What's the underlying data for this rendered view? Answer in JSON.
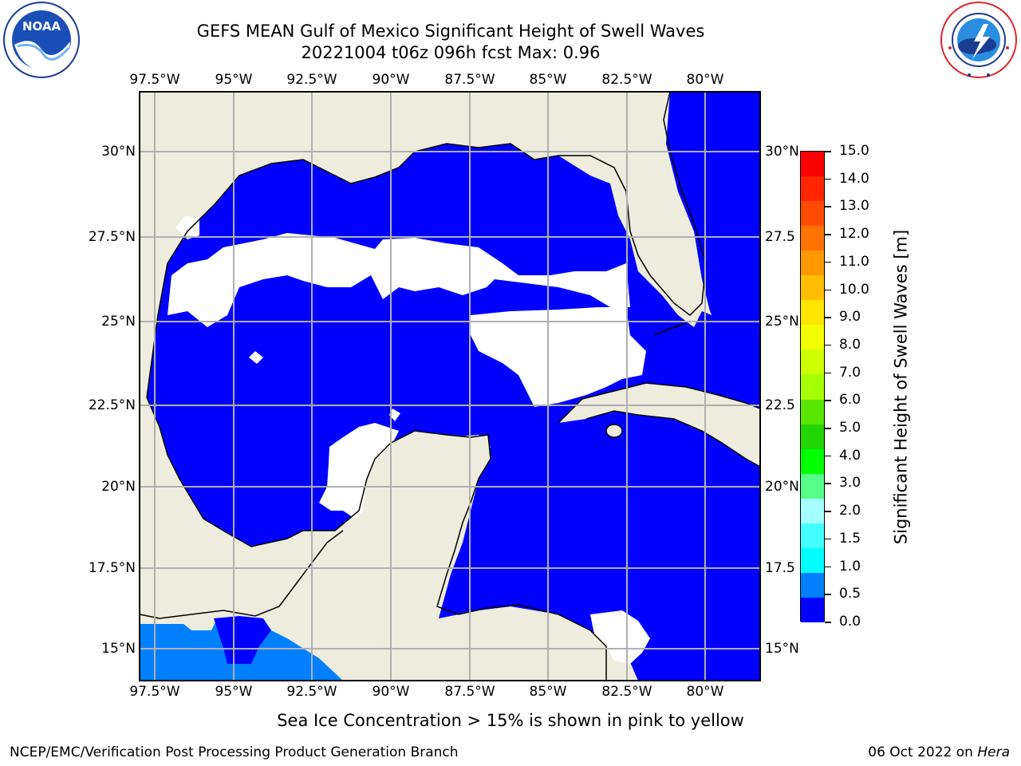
{
  "header": {
    "title_line1": "GEFS MEAN Gulf of Mexico Significant Height of Swell Waves",
    "title_line2": "20221004 t06z 096h fcst   Max: 0.96"
  },
  "logos": {
    "left_text": "NOAA",
    "left_ring_text": "NATIONAL OCEANIC AND ATMOSPHERIC ADMINISTRATION · U.S. DEPARTMENT OF COMMERCE",
    "right_ring_text": "NATIONAL WEATHER SERVICE"
  },
  "map": {
    "lon_labels": [
      "97.5°W",
      "95°W",
      "92.5°W",
      "90°W",
      "87.5°W",
      "85°W",
      "82.5°W",
      "80°W"
    ],
    "lat_labels": [
      "30°N",
      "27.5°N",
      "25°N",
      "22.5°N",
      "20°N",
      "17.5°N",
      "15°N"
    ],
    "lat_labels_right": [
      "30°N",
      "27.5",
      "25°N",
      "22.5",
      "20°N",
      "17.5",
      "15°N"
    ],
    "colors": {
      "land": "#eeecdc",
      "no_data": "#ffffff",
      "swell_0_0.5": "#0000ff",
      "swell_0.5_1": "#0080ff",
      "grid": "#b0b0b0"
    }
  },
  "colorbar": {
    "label": "Significant Height of Swell Waves [m]",
    "ticks": [
      "15.0",
      "14.0",
      "13.0",
      "12.0",
      "11.0",
      "10.0",
      "9.0",
      "8.0",
      "7.0",
      "6.0",
      "5.0",
      "4.0",
      "3.0",
      "2.0",
      "1.5",
      "1.0",
      "0.5",
      "0.0"
    ],
    "colors": [
      "#ff0000",
      "#ff2600",
      "#ff4c00",
      "#ff7300",
      "#ff9900",
      "#ffbf00",
      "#ffe500",
      "#f2ff00",
      "#ccff00",
      "#a6ff00",
      "#59e600",
      "#22d400",
      "#00ff00",
      "#55ff88",
      "#a6ffff",
      "#44ffff",
      "#00ffff",
      "#0080ff",
      "#0000ff"
    ]
  },
  "footer": {
    "note": "Sea Ice Concentration > 15% is shown in pink to yellow",
    "left": "NCEP/EMC/Verification Post Processing Product Generation Branch",
    "right_date": "06 Oct 2022 on",
    "right_system": "Hera"
  }
}
